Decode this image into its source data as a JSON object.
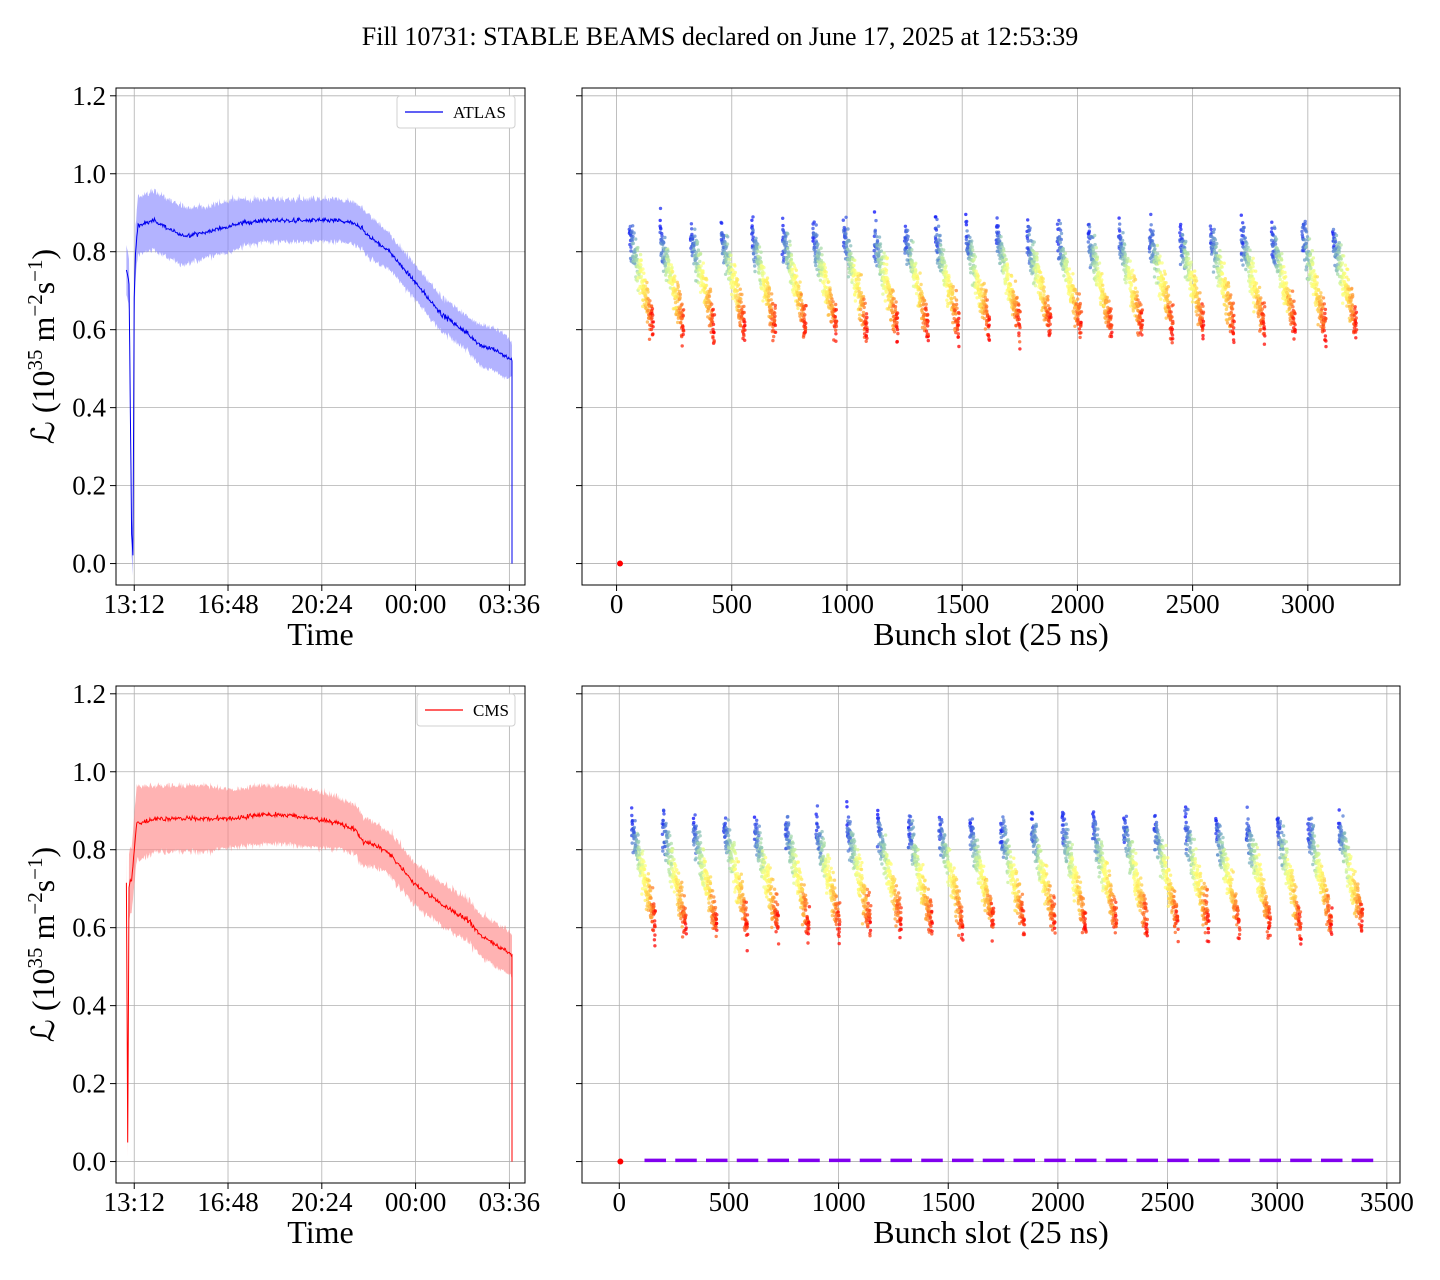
{
  "title": "Fill 10731: STABLE BEAMS declared on June 17, 2025 at 12:53:39",
  "colors": {
    "atlas": "#0000ee",
    "atlas_band": "#8080ff",
    "cms": "#ff0000",
    "cms_band": "#ff8080",
    "grid": "#b0b0b0"
  },
  "chart_data": [
    {
      "type": "line",
      "experiment": "ATLAS",
      "xlabel": "Time",
      "ylabel_prefix": "ℒ (10",
      "ylabel_exp": "35",
      "ylabel_unit": " m",
      "ylabel_exp2": "−2",
      "ylabel_unit2": "s",
      "ylabel_exp3": "−1",
      "ylabel_suffix": ")",
      "xlim_hours": [
        12.5,
        28.2
      ],
      "ylim": [
        -0.055,
        1.22
      ],
      "x_ticks": [
        "13:12",
        "16:48",
        "20:24",
        "00:00",
        "03:36"
      ],
      "y_ticks": [
        "0.0",
        "0.2",
        "0.4",
        "0.6",
        "0.8",
        "1.0",
        "1.2"
      ],
      "legend": "ATLAS",
      "legend_position": "upper right",
      "grid": true,
      "series": [
        {
          "x_hours": [
            12.9,
            13.0,
            13.1,
            13.15,
            13.2,
            13.25,
            13.35,
            13.5,
            14.0,
            15.0,
            16.0,
            16.5,
            17.0,
            18.0,
            19.0,
            20.0,
            21.0,
            21.8,
            22.2,
            23.0,
            24.0,
            25.0,
            26.0,
            26.5,
            27.0,
            27.5,
            27.7
          ],
          "y": [
            0.75,
            0.72,
            0.08,
            0.02,
            0.68,
            0.8,
            0.87,
            0.87,
            0.88,
            0.84,
            0.85,
            0.86,
            0.87,
            0.88,
            0.88,
            0.88,
            0.88,
            0.87,
            0.84,
            0.8,
            0.72,
            0.64,
            0.59,
            0.56,
            0.55,
            0.53,
            0.52
          ],
          "band_halfwidth": [
            0.06,
            0.06,
            0.05,
            0.05,
            0.06,
            0.06,
            0.07,
            0.07,
            0.07,
            0.07,
            0.06,
            0.06,
            0.06,
            0.05,
            0.05,
            0.05,
            0.05,
            0.05,
            0.05,
            0.04,
            0.04,
            0.04,
            0.04,
            0.05,
            0.05,
            0.05,
            0.04
          ]
        }
      ]
    },
    {
      "type": "scatter",
      "experiment": "ATLAS",
      "xlabel": "Bunch slot (25 ns)",
      "xlim": [
        -150,
        3400
      ],
      "ylim": [
        -0.055,
        1.22
      ],
      "x_ticks": [
        0,
        500,
        1000,
        1500,
        2000,
        2500,
        3000
      ],
      "grid": true,
      "trains": 24,
      "slot_start": 55,
      "slot_end": 3240,
      "y_top": 0.86,
      "y_bottom": 0.6,
      "outlier": {
        "x": 15,
        "y": 0.0
      }
    },
    {
      "type": "line",
      "experiment": "CMS",
      "xlabel": "Time",
      "ylabel_prefix": "ℒ (10",
      "ylabel_exp": "35",
      "ylabel_unit": " m",
      "ylabel_exp2": "−2",
      "ylabel_unit2": "s",
      "ylabel_exp3": "−1",
      "ylabel_suffix": ")",
      "xlim_hours": [
        12.5,
        28.2
      ],
      "ylim": [
        -0.055,
        1.22
      ],
      "x_ticks": [
        "13:12",
        "16:48",
        "20:24",
        "00:00",
        "03:36"
      ],
      "y_ticks": [
        "0.0",
        "0.2",
        "0.4",
        "0.6",
        "0.8",
        "1.0",
        "1.2"
      ],
      "legend": "CMS",
      "legend_position": "upper right",
      "grid": true,
      "series": [
        {
          "x_hours": [
            12.9,
            12.95,
            13.0,
            13.05,
            13.1,
            13.3,
            13.5,
            14.0,
            15.0,
            16.0,
            17.0,
            18.0,
            19.0,
            20.0,
            21.0,
            21.7,
            22.0,
            22.5,
            23.0,
            24.0,
            25.0,
            26.0,
            26.5,
            27.0,
            27.5,
            27.7
          ],
          "y": [
            0.72,
            0.05,
            0.7,
            0.72,
            0.72,
            0.87,
            0.87,
            0.88,
            0.88,
            0.88,
            0.88,
            0.89,
            0.89,
            0.88,
            0.87,
            0.85,
            0.82,
            0.81,
            0.79,
            0.71,
            0.66,
            0.62,
            0.58,
            0.56,
            0.54,
            0.53
          ],
          "band_halfwidth": [
            0.08,
            0.03,
            0.08,
            0.08,
            0.08,
            0.09,
            0.09,
            0.08,
            0.08,
            0.08,
            0.07,
            0.07,
            0.07,
            0.07,
            0.06,
            0.06,
            0.06,
            0.05,
            0.05,
            0.05,
            0.05,
            0.05,
            0.05,
            0.05,
            0.05,
            0.05
          ]
        }
      ]
    },
    {
      "type": "scatter",
      "experiment": "CMS",
      "xlabel": "Bunch slot (25 ns)",
      "xlim": [
        -170,
        3560
      ],
      "ylim": [
        -0.055,
        1.22
      ],
      "x_ticks": [
        0,
        500,
        1000,
        1500,
        2000,
        2500,
        3000,
        3500
      ],
      "grid": true,
      "trains": 24,
      "slot_start": 55,
      "slot_end": 3420,
      "y_top": 0.88,
      "y_bottom": 0.6,
      "outlier": {
        "x": 5,
        "y": 0.0
      },
      "baseline_y": 0.003
    }
  ]
}
